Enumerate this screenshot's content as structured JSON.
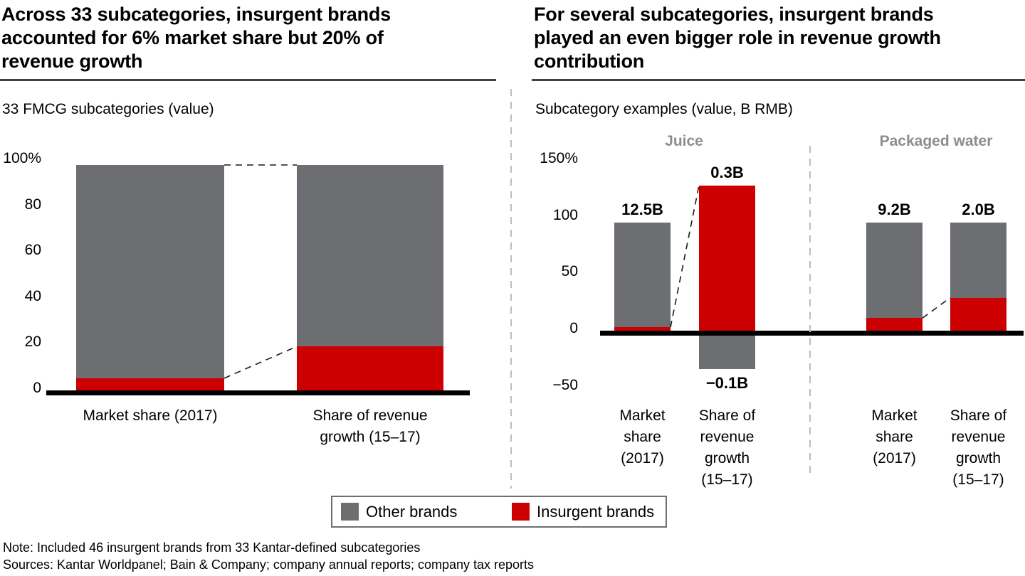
{
  "header": {
    "left": {
      "title": "Across 33 subcategories, insurgent brands\naccounted for 6% market share but 20% of\nrevenue growth",
      "subtitle": "33 FMCG subcategories (value)"
    },
    "right": {
      "title": "For several subcategories, insurgent brands\nplayed an even bigger role in revenue growth\ncontribution",
      "subtitle": "Subcategory examples (value, B RMB)"
    }
  },
  "colors": {
    "insurgent": "#cc0000",
    "other": "#6d6e71",
    "group_header": "#8b8d90",
    "divider": "#bdbdbd",
    "connector": "#1a1a1a"
  },
  "legend": {
    "items": [
      {
        "key": "other",
        "label": "Other brands",
        "color": "#6d6e71"
      },
      {
        "key": "insurgent",
        "label": "Insurgent brands",
        "color": "#cc0000"
      }
    ]
  },
  "footer": {
    "note": "Note: Included 46 insurgent brands from 33 Kantar-defined subcategories",
    "sources": "Sources: Kantar Worldpanel; Bain & Company; company annual reports; company tax reports"
  },
  "chart_data": [
    {
      "type": "bar",
      "stacked": true,
      "title": "33 FMCG subcategories (value)",
      "unit": "%",
      "ylim": [
        0,
        100
      ],
      "grid": false,
      "legend_position": "bottom",
      "yticks": [
        {
          "v": 100,
          "label": "100%"
        },
        {
          "v": 80,
          "label": "80"
        },
        {
          "v": 60,
          "label": "60"
        },
        {
          "v": 40,
          "label": "40"
        },
        {
          "v": 20,
          "label": "20"
        },
        {
          "v": 0,
          "label": "0"
        }
      ],
      "categories": [
        "Market share (2017)",
        "Share of revenue growth (15–17)"
      ],
      "series": [
        {
          "name": "Insurgent brands",
          "values": [
            6,
            20
          ]
        },
        {
          "name": "Other brands",
          "values": [
            94,
            80
          ]
        }
      ],
      "bars": [
        {
          "category": "Market share (2017)",
          "category_lines": "Market share (2017)",
          "insurgent": 6,
          "other": 94
        },
        {
          "category": "Share of revenue growth (15–17)",
          "category_lines": "Share of revenue\ngrowth (15–17)",
          "insurgent": 20,
          "other": 80
        }
      ]
    },
    {
      "type": "bar",
      "stacked": true,
      "title": "Subcategory examples (value, B RMB)",
      "unit": "%",
      "ylim": [
        -50,
        150
      ],
      "grid": false,
      "yticks": [
        {
          "v": 150,
          "label": "150%"
        },
        {
          "v": 100,
          "label": "100"
        },
        {
          "v": 50,
          "label": "50"
        },
        {
          "v": 0,
          "label": "0"
        },
        {
          "v": -50,
          "label": "−50"
        }
      ],
      "groups": [
        {
          "name": "Juice",
          "bars": [
            {
              "category": "Market share (2017)",
              "category_lines": "Market\nshare\n(2017)",
              "value_label": "12.5B",
              "insurgent": 5,
              "other": 92
            },
            {
              "category": "Share of revenue growth (15–17)",
              "category_lines": "Share of\nrevenue\ngrowth\n(15–17)",
              "value_label": "0.3B",
              "negative_label": "−0.1B",
              "insurgent": 130,
              "other": -33
            }
          ]
        },
        {
          "name": "Packaged water",
          "bars": [
            {
              "category": "Market share (2017)",
              "category_lines": "Market\nshare\n(2017)",
              "value_label": "9.2B",
              "insurgent": 13,
              "other": 84
            },
            {
              "category": "Share of revenue growth (15–17)",
              "category_lines": "Share of\nrevenue\ngrowth\n(15–17)",
              "value_label": "2.0B",
              "insurgent": 31,
              "other": 66
            }
          ]
        }
      ]
    }
  ]
}
